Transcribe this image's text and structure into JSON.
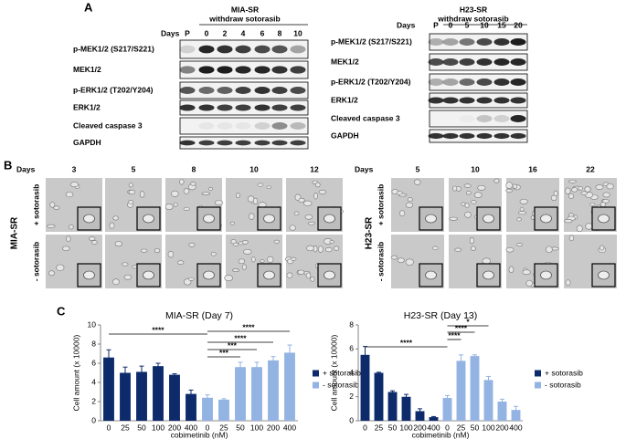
{
  "panel_labels": [
    "A",
    "B",
    "C"
  ],
  "blots": [
    {
      "cell_line": "MIA-SR",
      "condition": "withdraw sotorasib",
      "days_label": "Days",
      "lanes": [
        "P",
        "0",
        "2",
        "4",
        "6",
        "8",
        "10"
      ],
      "proteins": [
        "p-MEK1/2 (S217/S221)",
        "MEK1/2",
        "p-ERK1/2 (T202/Y204)",
        "ERK1/2",
        "Cleaved caspase 3",
        "GAPDH"
      ]
    },
    {
      "cell_line": "H23-SR",
      "condition": "withdraw sotorasib",
      "days_label": "Days",
      "lanes": [
        "P",
        "0",
        "5",
        "10",
        "15",
        "20"
      ],
      "proteins": [
        "p-MEK1/2 (S217/S221)",
        "MEK1/2",
        "p-ERK1/2 (T202/Y204)",
        "ERK1/2",
        "Cleaved caspase 3",
        "GAPDH"
      ]
    }
  ],
  "microscopy": [
    {
      "cell_line": "MIA-SR",
      "days_label": "Days",
      "days": [
        "3",
        "5",
        "8",
        "10",
        "12"
      ],
      "conditions": [
        "+ sotorasib",
        "- sotorasib"
      ]
    },
    {
      "cell_line": "H23-SR",
      "days_label": "Days",
      "days": [
        "5",
        "10",
        "16",
        "22"
      ],
      "conditions": [
        "+ sotorasib",
        "- sotorasib"
      ]
    }
  ],
  "chart_data": [
    {
      "type": "bar",
      "title": "MIA-SR (Day 7)",
      "x_label": "cobimetinib (nM)",
      "y_label": "Cell amount (x 10000)",
      "categories": [
        "0",
        "25",
        "50",
        "100",
        "200",
        "400",
        "0",
        "25",
        "50",
        "100",
        "200",
        "400"
      ],
      "series": [
        {
          "name": "+ sotorasib",
          "color": "#0d2b6b",
          "values": [
            6.6,
            5.0,
            5.1,
            5.7,
            4.8,
            2.8,
            null,
            null,
            null,
            null,
            null,
            null
          ],
          "errors": [
            0.8,
            0.6,
            0.6,
            0.3,
            0.1,
            0.4,
            null,
            null,
            null,
            null,
            null,
            null
          ]
        },
        {
          "name": "- sotorasib",
          "color": "#93b3e3",
          "values": [
            null,
            null,
            null,
            null,
            null,
            null,
            2.4,
            2.2,
            5.6,
            5.6,
            6.3,
            7.1
          ],
          "errors": [
            null,
            null,
            null,
            null,
            null,
            null,
            0.3,
            0.1,
            0.5,
            0.5,
            0.4,
            0.8
          ]
        }
      ],
      "ylim": [
        0,
        10
      ],
      "yticks": [
        0,
        2,
        4,
        6,
        8,
        10
      ],
      "annotations": [
        "****",
        "***",
        "***",
        "****",
        "****"
      ]
    },
    {
      "type": "bar",
      "title": "H23-SR (Day 13)",
      "x_label": "cobimetinib (nM)",
      "y_label": "Cell amount (x 10000)",
      "categories": [
        "0",
        "25",
        "50",
        "100",
        "200",
        "400",
        "0",
        "25",
        "50",
        "100",
        "200",
        "400"
      ],
      "series": [
        {
          "name": "+ sotorasib",
          "color": "#0d2b6b",
          "values": [
            5.5,
            4.0,
            2.4,
            2.0,
            0.8,
            0.3,
            null,
            null,
            null,
            null,
            null,
            null
          ],
          "errors": [
            0.7,
            0.05,
            0.1,
            0.2,
            0.2,
            0.05,
            null,
            null,
            null,
            null,
            null,
            null
          ]
        },
        {
          "name": "- sotorasib",
          "color": "#93b3e3",
          "values": [
            null,
            null,
            null,
            null,
            null,
            null,
            1.9,
            5.0,
            5.4,
            3.4,
            1.6,
            0.9
          ],
          "errors": [
            null,
            null,
            null,
            null,
            null,
            null,
            0.2,
            0.5,
            0.1,
            0.3,
            0.2,
            0.3
          ]
        }
      ],
      "ylim": [
        0,
        8
      ],
      "yticks": [
        0,
        2,
        4,
        6,
        8
      ],
      "annotations": [
        "****",
        "****",
        "****",
        "*"
      ]
    }
  ]
}
